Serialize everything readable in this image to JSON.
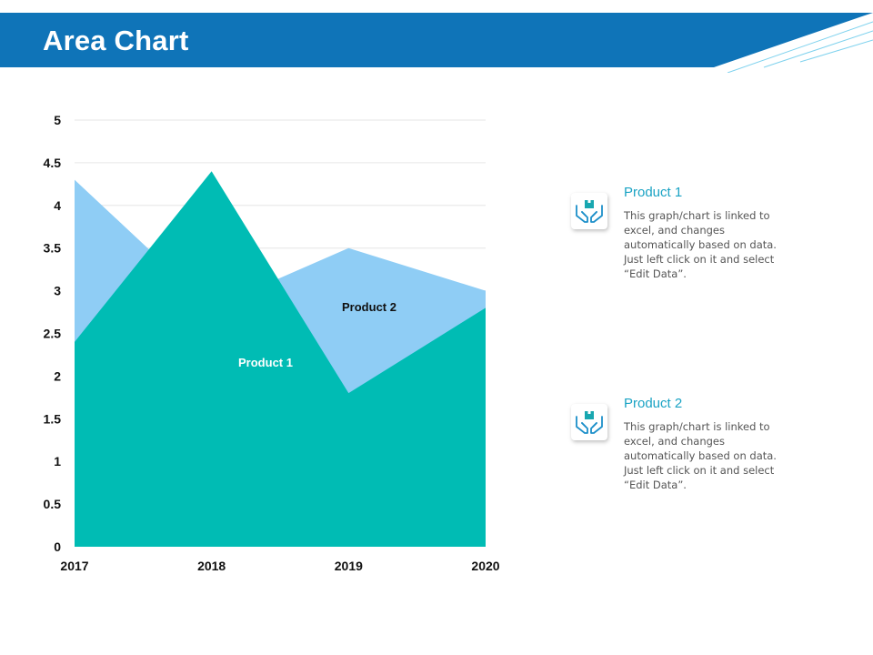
{
  "page": {
    "title": "Area Chart"
  },
  "colors": {
    "header_blue": "#0f74b8",
    "product_1": "#00bcb4",
    "product_2": "#8fcdf5",
    "legend_title": "#1aa3c4",
    "icon_blue": "#1c8fc9",
    "icon_teal": "#18a7b0"
  },
  "chart_data": {
    "type": "area",
    "categories": [
      "2017",
      "2018",
      "2019",
      "2020"
    ],
    "series": [
      {
        "name": "Product 1",
        "values": [
          2.4,
          4.4,
          1.8,
          2.8
        ]
      },
      {
        "name": "Product 2",
        "values": [
          4.3,
          2.8,
          3.5,
          3.0
        ]
      }
    ],
    "ylim": [
      0,
      5
    ],
    "y_ticks": [
      "0",
      "0.5",
      "1",
      "1.5",
      "2",
      "2.5",
      "3",
      "3.5",
      "4",
      "4.5",
      "5"
    ],
    "grid": true,
    "area_labels": [
      "Product 1",
      "Product 2"
    ]
  },
  "legend": {
    "items": [
      {
        "title": "Product 1",
        "description": "This graph/chart is linked to excel, and changes automatically based on data. Just left click on it and select “Edit Data”.",
        "icon": "hands-holding-box-icon"
      },
      {
        "title": "Product 2",
        "description": "This graph/chart is linked to excel, and changes automatically based on data. Just left click on it and select “Edit Data”.",
        "icon": "hands-holding-box-icon"
      }
    ]
  }
}
